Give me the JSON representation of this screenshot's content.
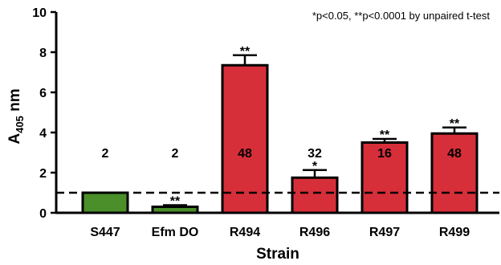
{
  "chart_data": {
    "type": "bar",
    "annotation": "*p<0.05, **p<0.0001 by unpaired t-test",
    "xlabel": "Strain",
    "ylabel": {
      "base": "A",
      "sub": "405",
      "unit": " nm"
    },
    "ylim": [
      0,
      10
    ],
    "yticks": [
      "0",
      "2",
      "4",
      "6",
      "8",
      "10"
    ],
    "reference_line_y": 1.0,
    "grid": false,
    "categories": [
      "S447",
      "Efm DO",
      "R494",
      "R496",
      "R497",
      "R499"
    ],
    "values": [
      1.0,
      0.3,
      7.35,
      1.75,
      3.5,
      3.95
    ],
    "errors": [
      0.0,
      0.08,
      0.5,
      0.38,
      0.18,
      0.3
    ],
    "bar_colors": [
      "#4a8f2a",
      "#4a8f2a",
      "#d62f3a",
      "#d62f3a",
      "#d62f3a",
      "#d62f3a"
    ],
    "bar_labels": [
      "2",
      "2",
      "48",
      "32",
      "16",
      "48"
    ],
    "significance": [
      "",
      "**",
      "**",
      "*",
      "**",
      "**"
    ]
  }
}
